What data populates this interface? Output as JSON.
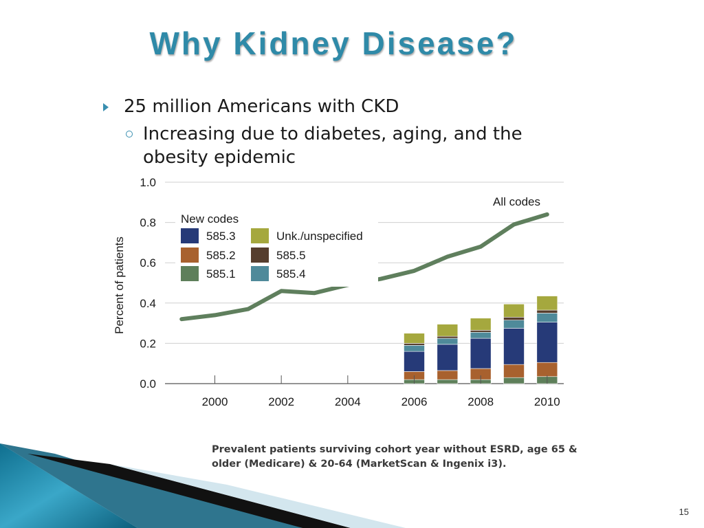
{
  "slide": {
    "title": "Why Kidney Disease?",
    "bullet_1": "25 million Americans with CKD",
    "bullet_2": "Increasing due to diabetes, aging, and the obesity epidemic",
    "caption": "Prevalent patients surviving cohort year without ESRD, age 65 & older (Medicare) & 20-64 (MarketScan & Ingenix i3).",
    "page_number": "15",
    "colors": {
      "title": "#2f8aa8",
      "bullet_marker": "#3a8fb0",
      "decor_teal": "#1d86a8"
    }
  },
  "chart_data": {
    "type": "bar",
    "ylabel": "Percent of patients",
    "ylim": [
      0,
      1.0
    ],
    "y_ticks": [
      "0.0",
      "0.2",
      "0.4",
      "0.6",
      "0.8",
      "1.0"
    ],
    "x_ticks": [
      "2000",
      "2002",
      "2004",
      "2006",
      "2008",
      "2010"
    ],
    "xlim": [
      1998.5,
      2010.5
    ],
    "grid": true,
    "legend_title": "New codes",
    "line_label": "All codes",
    "line": {
      "name": "All codes",
      "color": "#5f7f5d",
      "x": [
        1999,
        2000,
        2001,
        2002,
        2003,
        2004,
        2005,
        2006,
        2007,
        2008,
        2009,
        2010
      ],
      "y": [
        0.32,
        0.34,
        0.37,
        0.46,
        0.45,
        0.49,
        0.52,
        0.56,
        0.63,
        0.68,
        0.79,
        0.84
      ]
    },
    "stacked_bars": {
      "x": [
        2006,
        2007,
        2008,
        2009,
        2010
      ],
      "series": [
        {
          "name": "585.1",
          "color": "#5e7f5a",
          "values": [
            0.02,
            0.02,
            0.02,
            0.03,
            0.035
          ]
        },
        {
          "name": "585.2",
          "color": "#a8612e",
          "values": [
            0.04,
            0.045,
            0.055,
            0.065,
            0.07
          ]
        },
        {
          "name": "585.3",
          "color": "#263a78",
          "values": [
            0.1,
            0.13,
            0.15,
            0.18,
            0.2
          ]
        },
        {
          "name": "585.4",
          "color": "#4f8a9a",
          "values": [
            0.03,
            0.03,
            0.03,
            0.04,
            0.045
          ]
        },
        {
          "name": "585.5",
          "color": "#563e2e",
          "values": [
            0.01,
            0.01,
            0.01,
            0.015,
            0.015
          ]
        },
        {
          "name": "Unk./unspecified",
          "color": "#a5a83e",
          "values": [
            0.05,
            0.06,
            0.06,
            0.065,
            0.07
          ]
        }
      ]
    },
    "legend_layout": [
      [
        "585.3",
        "Unk./unspecified"
      ],
      [
        "585.2",
        "585.5"
      ],
      [
        "585.1",
        "585.4"
      ]
    ]
  }
}
